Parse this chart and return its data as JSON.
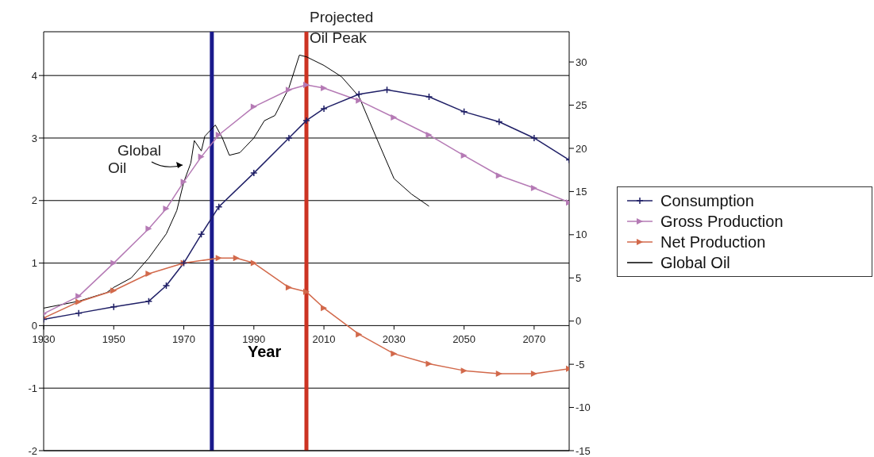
{
  "chart_data": {
    "type": "line",
    "xlabel": "Year",
    "xlim": [
      1930,
      2080
    ],
    "xticks": [
      1930,
      1950,
      1970,
      1990,
      2010,
      2030,
      2050,
      2070
    ],
    "ylim": [
      -2,
      4.7
    ],
    "yticks": [
      -2,
      -1,
      0,
      1,
      2,
      3,
      4
    ],
    "y2lim": [
      -15,
      33.5
    ],
    "y2ticks": [
      -15,
      -10,
      -5,
      0,
      5,
      10,
      15,
      20,
      25,
      30
    ],
    "grid": "y",
    "legend": "right",
    "line_style": "solid",
    "series": [
      {
        "name": "Consumption",
        "color": "#1f1f66",
        "marker": "cross",
        "x": [
          1930,
          1940,
          1950,
          1960,
          1965,
          1970,
          1975,
          1980,
          1990,
          2000,
          2005,
          2010,
          2020,
          2028,
          2040,
          2050,
          2060,
          2070,
          2080
        ],
        "values": [
          0.1,
          0.2,
          0.3,
          0.39,
          0.64,
          1.0,
          1.46,
          1.9,
          2.44,
          3.0,
          3.28,
          3.47,
          3.7,
          3.77,
          3.66,
          3.42,
          3.26,
          3.0,
          2.65
        ]
      },
      {
        "name": "Gross Production",
        "color": "#b57ab5",
        "marker": "triangle",
        "x": [
          1930,
          1940,
          1950,
          1960,
          1965,
          1970,
          1975,
          1980,
          1990,
          2000,
          2005,
          2010,
          2020,
          2030,
          2040,
          2050,
          2060,
          2070,
          2080
        ],
        "values": [
          0.19,
          0.47,
          1.0,
          1.55,
          1.87,
          2.3,
          2.7,
          3.05,
          3.5,
          3.77,
          3.85,
          3.8,
          3.6,
          3.33,
          3.05,
          2.72,
          2.4,
          2.2,
          1.97
        ]
      },
      {
        "name": "Net Production",
        "color": "#d2694b",
        "marker": "triangle",
        "x": [
          1930,
          1940,
          1950,
          1960,
          1970,
          1980,
          1985,
          1990,
          2000,
          2005,
          2010,
          2020,
          2030,
          2040,
          2050,
          2060,
          2070,
          2080
        ],
        "values": [
          0.12,
          0.38,
          0.56,
          0.83,
          1.0,
          1.08,
          1.08,
          1.0,
          0.61,
          0.54,
          0.28,
          -0.14,
          -0.45,
          -0.61,
          -0.72,
          -0.77,
          -0.77,
          -0.69
        ]
      },
      {
        "name": "Global Oil",
        "color": "#000000",
        "marker": "none",
        "axis": "y2",
        "x": [
          1930,
          1940,
          1948,
          1950,
          1955,
          1960,
          1965,
          1968,
          1970,
          1972,
          1973,
          1975,
          1976,
          1979,
          1981,
          1983,
          1986,
          1990,
          1993,
          1996,
          2000,
          2003,
          2005,
          2010,
          2015,
          2020,
          2025,
          2030,
          2035,
          2040
        ],
        "values": [
          1.5,
          2.3,
          3.3,
          3.9,
          5.0,
          7.3,
          10.1,
          12.8,
          16.1,
          18.3,
          20.9,
          19.7,
          21.4,
          22.7,
          21.2,
          19.2,
          19.5,
          21.2,
          23.2,
          23.8,
          27.0,
          30.8,
          30.6,
          29.6,
          28.3,
          26.0,
          21.2,
          16.5,
          14.7,
          13.3
        ]
      }
    ],
    "ref_lines": [
      {
        "axis": "x",
        "value": 1978,
        "label": null,
        "color": "#1a1a8c"
      },
      {
        "axis": "x",
        "value": 2005,
        "label": "Projected Oil Peak",
        "color": "#cc3322"
      }
    ],
    "annotations": [
      "Global Oil"
    ]
  }
}
